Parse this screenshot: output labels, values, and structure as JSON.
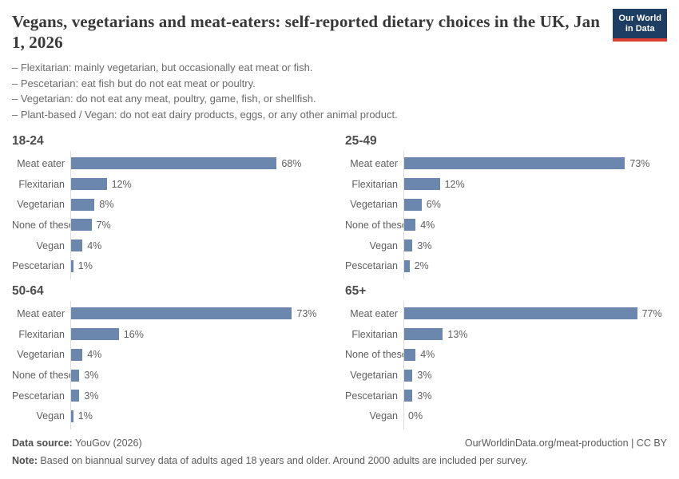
{
  "header": {
    "title": "Vegans, vegetarians and meat-eaters: self-reported dietary choices in the UK, Jan 1, 2026",
    "subtitle_lines": [
      "– Flexitarian: mainly vegetarian, but occasionally eat meat or fish.",
      "– Pescetarian: eat fish but do not eat meat or poultry.",
      "– Vegetarian: do not eat any meat, poultry, game, fish, or shellfish.",
      "– Plant-based / Vegan: do not eat dairy products, eggs, or any other animal product."
    ],
    "logo": {
      "line1": "Our World",
      "line2": "in Data"
    }
  },
  "chart_data": {
    "type": "bar",
    "orientation": "horizontal",
    "unit": "%",
    "xlim": [
      0,
      80
    ],
    "grid": false,
    "bar_color": "#6c87ad",
    "value_labels": "end-of-bar",
    "panels": [
      {
        "title": "18-24",
        "categories": [
          "Meat eater",
          "Flexitarian",
          "Vegetarian",
          "None of these",
          "Vegan",
          "Pescetarian"
        ],
        "values": [
          68,
          12,
          8,
          7,
          4,
          1
        ]
      },
      {
        "title": "25-49",
        "categories": [
          "Meat eater",
          "Flexitarian",
          "Vegetarian",
          "None of these",
          "Vegan",
          "Pescetarian"
        ],
        "values": [
          73,
          12,
          6,
          4,
          3,
          2
        ]
      },
      {
        "title": "50-64",
        "categories": [
          "Meat eater",
          "Flexitarian",
          "Vegetarian",
          "None of these",
          "Pescetarian",
          "Vegan"
        ],
        "values": [
          73,
          16,
          4,
          3,
          3,
          1
        ]
      },
      {
        "title": "65+",
        "categories": [
          "Meat eater",
          "Flexitarian",
          "None of these",
          "Vegetarian",
          "Pescetarian",
          "Vegan"
        ],
        "values": [
          77,
          13,
          4,
          3,
          3,
          0
        ]
      }
    ]
  },
  "footer": {
    "source_label": "Data source:",
    "source_value": " YouGov (2026)",
    "link": "OurWorldinData.org/meat-production | CC BY",
    "note_label": "Note:",
    "note_value": " Based on biannual survey data of adults aged 18 years and older. Around 2000 adults are included per survey."
  },
  "colors": {
    "bar": "#6c87ad",
    "title_text": "#383838",
    "body_text": "#5f5f5f",
    "axis": "#dcdcdc",
    "logo_navy": "#1d3d63",
    "logo_red": "#dc3e32"
  }
}
